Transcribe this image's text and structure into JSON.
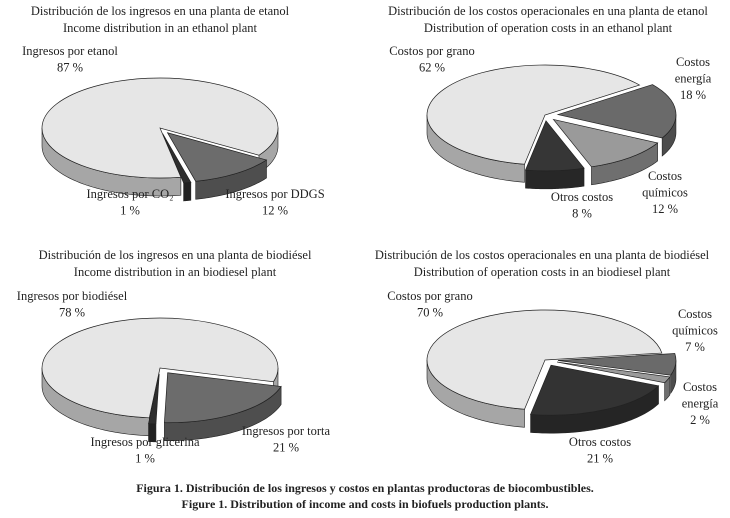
{
  "chart_data": [
    {
      "type": "pie",
      "title": "Distribución de los ingresos en una planta de etanol",
      "subtitle": "Income distribution in an ethanol plant",
      "labels": [
        "Ingresos por etanol",
        "Ingresos por CO₂",
        "Ingresos por DDGS"
      ],
      "values": [
        87,
        1,
        12
      ],
      "value_labels": [
        "87 %",
        "1 %",
        "12 %"
      ],
      "colors": [
        "#e6e6e6",
        "#2e2e2e",
        "#6c6c6c"
      ]
    },
    {
      "type": "pie",
      "title": "Distribución de los costos operacionales en una planta de etanol",
      "subtitle": "Distribution of operation costs in an ethanol plant",
      "labels": [
        "Costos por grano",
        "Costos energía",
        "Costos químicos",
        "Otros costos"
      ],
      "values": [
        62,
        18,
        12,
        8
      ],
      "value_labels": [
        "62 %",
        "18 %",
        "12 %",
        "8 %"
      ],
      "colors": [
        "#e6e6e6",
        "#6a6a6a",
        "#9a9a9a",
        "#363636"
      ]
    },
    {
      "type": "pie",
      "title": "Distribución de los ingresos en una planta de biodiésel",
      "subtitle": "Income distribution in an biodiesel plant",
      "labels": [
        "Ingresos por biodiésel",
        "Ingresos por glicerina",
        "Ingresos por torta"
      ],
      "values": [
        78,
        1,
        21
      ],
      "value_labels": [
        "78 %",
        "1 %",
        "21 %"
      ],
      "colors": [
        "#e6e6e6",
        "#2e2e2e",
        "#6c6c6c"
      ]
    },
    {
      "type": "pie",
      "title": "Distribución de los costos operacionales en una planta de biodiésel",
      "subtitle": "Distribution of operation costs in an biodiesel plant",
      "labels": [
        "Costos por grano",
        "Costos químicos",
        "Costos energía",
        "Otros costos"
      ],
      "values": [
        70,
        7,
        2,
        21
      ],
      "value_labels": [
        "70 %",
        "7 %",
        "2 %",
        "21 %"
      ],
      "colors": [
        "#e6e6e6",
        "#6a6a6a",
        "#9a9a9a",
        "#333333"
      ]
    }
  ],
  "caption": [
    "Figura 1. Distribución de los ingresos y costos en plantas productoras de biocombustibles.",
    "Figure 1. Distribution of income and costs in biofuels production plants."
  ]
}
